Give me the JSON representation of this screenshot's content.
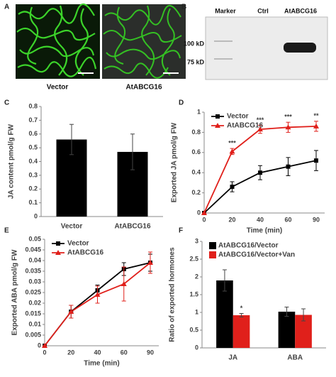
{
  "image_panels": {
    "a": {
      "label": "A",
      "captions": [
        "Vector",
        "AtABCG16"
      ]
    },
    "b": {
      "label": "B",
      "lanes": [
        "Marker",
        "Ctrl",
        "AtABCG16"
      ],
      "markers": [
        "100 kD",
        "75 kD"
      ]
    }
  },
  "chart_data": [
    {
      "panel": "C",
      "type": "bar",
      "ylabel": "JA content pmol/g FW",
      "categories": [
        "Vector",
        "AtABCG16"
      ],
      "values": [
        0.56,
        0.47
      ],
      "errors": [
        0.11,
        0.13
      ],
      "color": "#000000",
      "ylim": [
        0,
        0.8
      ],
      "yticks": [
        0,
        0.1,
        0.2,
        0.3,
        0.4,
        0.5,
        0.6,
        0.7,
        0.8
      ]
    },
    {
      "panel": "D",
      "type": "line",
      "xlabel": "Time (min)",
      "ylabel": "Exported JA pmol/g FW",
      "categories": [
        "0",
        "20",
        "40",
        "60",
        "90"
      ],
      "legend": "upper left",
      "series": [
        {
          "name": "Vector",
          "color": "#000000",
          "marker": "square",
          "values": [
            0,
            0.26,
            0.4,
            0.46,
            0.52
          ],
          "errors": [
            0,
            0.05,
            0.07,
            0.09,
            0.1
          ]
        },
        {
          "name": "AtABCG16",
          "color": "#e0201b",
          "marker": "triangle",
          "values": [
            0,
            0.61,
            0.83,
            0.85,
            0.86
          ],
          "errors": [
            0,
            0.03,
            0.04,
            0.05,
            0.05
          ],
          "significance": [
            null,
            "***",
            "***",
            "***",
            "**"
          ]
        }
      ],
      "ylim": [
        0,
        1
      ],
      "yticks": [
        0,
        0.2,
        0.4,
        0.6,
        0.8,
        1
      ]
    },
    {
      "panel": "E",
      "type": "line",
      "xlabel": "Time (min)",
      "ylabel": "Exported ABA pmol/g FW",
      "categories": [
        "0",
        "20",
        "40",
        "60",
        "90"
      ],
      "legend": "upper left",
      "series": [
        {
          "name": "Vector",
          "color": "#000000",
          "marker": "square",
          "values": [
            0,
            0.016,
            0.026,
            0.036,
            0.039
          ],
          "errors": [
            0,
            0.003,
            0.0025,
            0.003,
            0.004
          ]
        },
        {
          "name": "AtABCG16",
          "color": "#e0201b",
          "marker": "triangle",
          "values": [
            0,
            0.016,
            0.024,
            0.029,
            0.039
          ],
          "errors": [
            0,
            0.003,
            0.004,
            0.008,
            0.005
          ]
        }
      ],
      "ylim": [
        0,
        0.05
      ],
      "yticks": [
        0,
        0.005,
        0.01,
        0.015,
        0.02,
        0.025,
        0.03,
        0.035,
        0.04,
        0.045,
        0.05
      ]
    },
    {
      "panel": "F",
      "type": "bar",
      "ylabel": "Ratio of exported hormones",
      "categories": [
        "JA",
        "ABA"
      ],
      "legend": "upper left",
      "series": [
        {
          "name": "AtABCG16/Vector",
          "color": "#000000",
          "values": [
            1.9,
            1.02
          ],
          "errors": [
            0.3,
            0.13
          ]
        },
        {
          "name": "AtABCG16/Vector+Van",
          "color": "#e0201b",
          "values": [
            0.92,
            0.93
          ],
          "errors": [
            0.05,
            0.17
          ],
          "significance": [
            "*",
            null
          ]
        }
      ],
      "ylim": [
        0,
        3
      ],
      "yticks": [
        0,
        0.5,
        1,
        1.5,
        2,
        2.5,
        3
      ]
    }
  ]
}
